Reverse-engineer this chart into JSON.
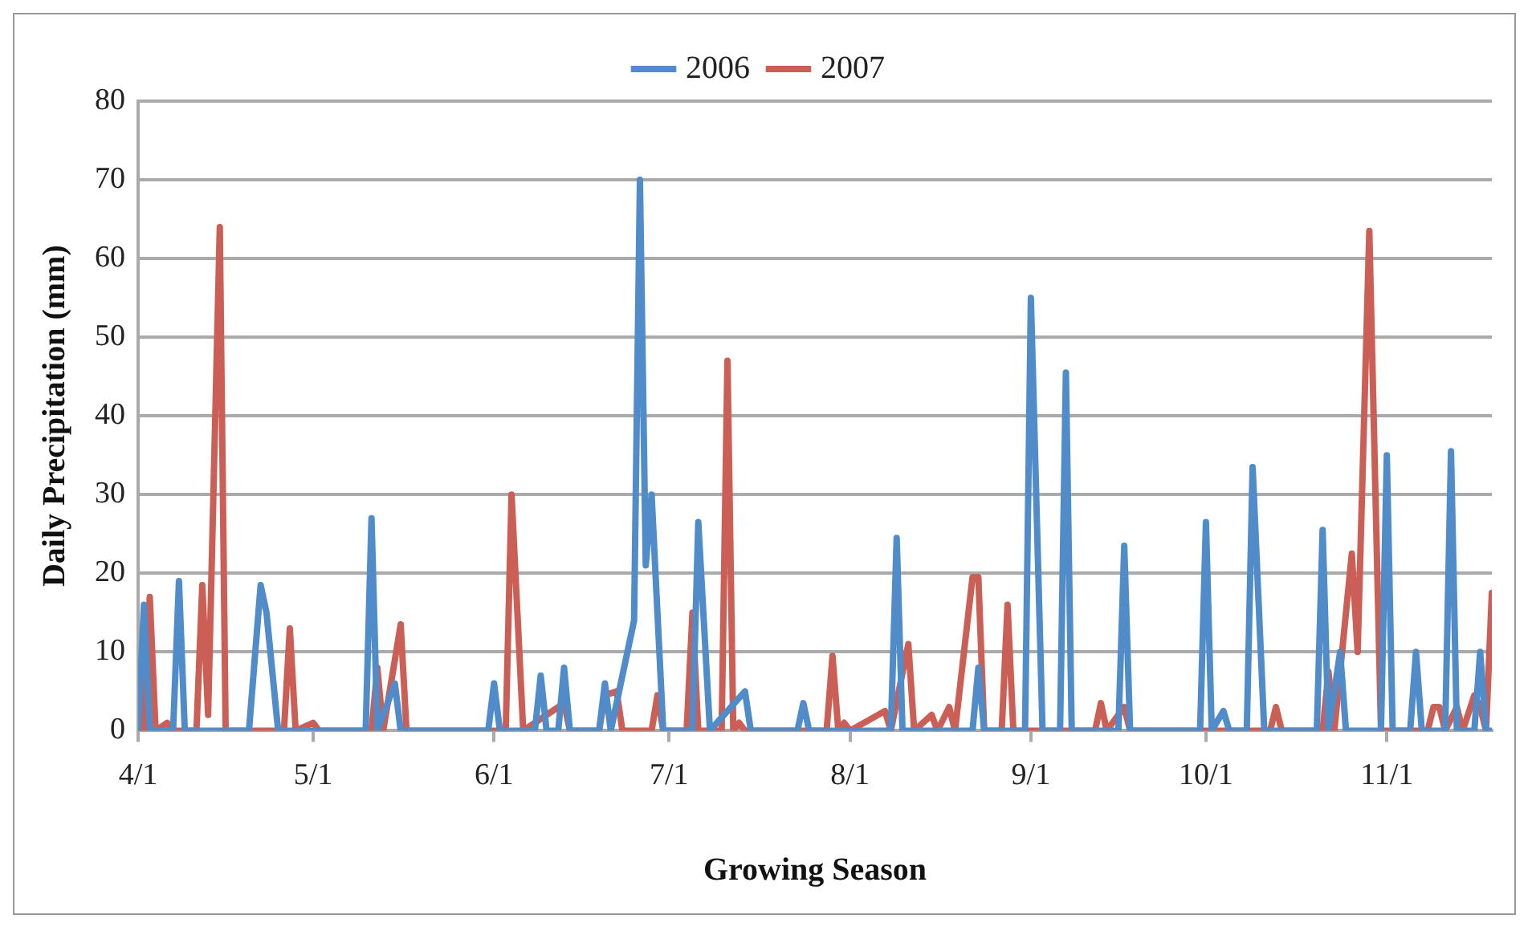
{
  "chart_data": {
    "type": "line",
    "xlabel": "Growing Season",
    "ylabel": "Daily Precipitation (mm)",
    "xlim": [
      "--04-01",
      "--11-19"
    ],
    "xticks": [
      {
        "value": "--04-01",
        "label": "4/1"
      },
      {
        "value": "--05-01",
        "label": "5/1"
      },
      {
        "value": "--06-01",
        "label": "6/1"
      },
      {
        "value": "--07-01",
        "label": "7/1"
      },
      {
        "value": "--08-01",
        "label": "8/1"
      },
      {
        "value": "--09-01",
        "label": "9/1"
      },
      {
        "value": "--10-01",
        "label": "10/1"
      },
      {
        "value": "--11-01",
        "label": "11/1"
      }
    ],
    "ylim": [
      0,
      80
    ],
    "yticks": [
      0,
      10,
      20,
      30,
      40,
      50,
      60,
      70,
      80
    ],
    "grid": "y",
    "legend": "top",
    "marker": "none",
    "line_style": "solid",
    "series": [
      {
        "name": "2006",
        "color": "#4f8cc9",
        "x": [
          "--04-01",
          "--04-02",
          "--04-03",
          "--04-07",
          "--04-08",
          "--04-09",
          "--04-20",
          "--04-22",
          "--04-23",
          "--04-25",
          "--05-10",
          "--05-11",
          "--05-12",
          "--05-15",
          "--05-16",
          "--05-31",
          "--06-01",
          "--06-02",
          "--06-08",
          "--06-09",
          "--06-10",
          "--06-12",
          "--06-13",
          "--06-14",
          "--06-19",
          "--06-20",
          "--06-21",
          "--06-25",
          "--06-26",
          "--06-27",
          "--06-28",
          "--06-30",
          "--07-05",
          "--07-06",
          "--07-08",
          "--07-14",
          "--07-15",
          "--07-23",
          "--07-24",
          "--07-25",
          "--08-08",
          "--08-09",
          "--08-10",
          "--08-22",
          "--08-23",
          "--08-24",
          "--08-31",
          "--09-01",
          "--09-03",
          "--09-06",
          "--09-07",
          "--09-08",
          "--09-16",
          "--09-17",
          "--09-18",
          "--09-30",
          "--10-01",
          "--10-02",
          "--10-04",
          "--10-05",
          "--10-08",
          "--10-09",
          "--10-11",
          "--10-20",
          "--10-21",
          "--10-22",
          "--10-24",
          "--10-25",
          "--10-31",
          "--11-01",
          "--11-02",
          "--11-05",
          "--11-06",
          "--11-07",
          "--11-11",
          "--11-12",
          "--11-13",
          "--11-16",
          "--11-17",
          "--11-18",
          "--11-19"
        ],
        "values": [
          0,
          16,
          0,
          0,
          19,
          0,
          0,
          18.5,
          15,
          0,
          0,
          27,
          0,
          6,
          0,
          0,
          6,
          0,
          0,
          7,
          0,
          0,
          8,
          0,
          0,
          6,
          0,
          14,
          70,
          21,
          30,
          0,
          0,
          26.5,
          0,
          5,
          0,
          0,
          3.5,
          0,
          0,
          24.5,
          0,
          0,
          8,
          0,
          0,
          55,
          0,
          0,
          45.5,
          0,
          0,
          23.5,
          0,
          0,
          26.5,
          0,
          2.5,
          0,
          0,
          33.5,
          0,
          0,
          25.5,
          0,
          10,
          0,
          0,
          35,
          0,
          0,
          10,
          0,
          0,
          35.5,
          0,
          0,
          10,
          0,
          0
        ]
      },
      {
        "name": "2007",
        "color": "#cc5f55",
        "x": [
          "--04-01",
          "--04-02",
          "--04-03",
          "--04-04",
          "--04-06",
          "--04-07",
          "--04-11",
          "--04-12",
          "--04-13",
          "--04-15",
          "--04-16",
          "--04-26",
          "--04-27",
          "--04-28",
          "--05-01",
          "--05-02",
          "--05-11",
          "--05-12",
          "--05-13",
          "--05-16",
          "--05-17",
          "--06-03",
          "--06-04",
          "--06-06",
          "--06-13",
          "--06-14",
          "--06-19",
          "--06-20",
          "--06-22",
          "--06-23",
          "--06-28",
          "--06-29",
          "--06-30",
          "--07-04",
          "--07-05",
          "--07-06",
          "--07-10",
          "--07-11",
          "--07-12",
          "--07-13",
          "--07-14",
          "--07-28",
          "--07-29",
          "--07-30",
          "--07-31",
          "--08-01",
          "--08-07",
          "--08-08",
          "--08-11",
          "--08-12",
          "--08-15",
          "--08-16",
          "--08-18",
          "--08-19",
          "--08-22",
          "--08-23",
          "--08-24",
          "--08-27",
          "--08-28",
          "--08-29",
          "--09-12",
          "--09-13",
          "--09-14",
          "--09-17",
          "--09-18",
          "--10-12",
          "--10-13",
          "--10-14",
          "--10-21",
          "--10-22",
          "--10-23",
          "--10-26",
          "--10-27",
          "--10-29",
          "--10-31",
          "--11-08",
          "--11-09",
          "--11-10",
          "--11-11",
          "--11-13",
          "--11-14",
          "--11-16",
          "--11-17",
          "--11-18",
          "--11-19"
        ],
        "values": [
          0,
          0,
          17,
          0,
          1,
          0,
          0,
          18.5,
          2,
          64,
          0,
          0,
          13,
          0,
          1,
          0,
          0,
          8,
          0,
          13.5,
          0,
          0,
          30,
          0,
          3.5,
          0,
          0,
          4.5,
          5,
          0,
          0,
          4.5,
          0,
          0,
          15,
          0,
          0,
          47,
          0,
          1,
          0,
          0,
          9.5,
          0,
          1,
          0,
          2.5,
          0,
          11,
          0,
          2,
          0,
          3,
          0,
          19.5,
          19.5,
          0,
          0,
          16,
          0,
          0,
          3.5,
          0,
          3,
          0,
          0,
          3,
          0,
          0,
          7.5,
          0,
          22.5,
          10,
          63.5,
          0,
          0,
          3,
          3,
          0,
          3,
          0,
          4.5,
          3,
          0,
          17.5
        ]
      }
    ]
  }
}
